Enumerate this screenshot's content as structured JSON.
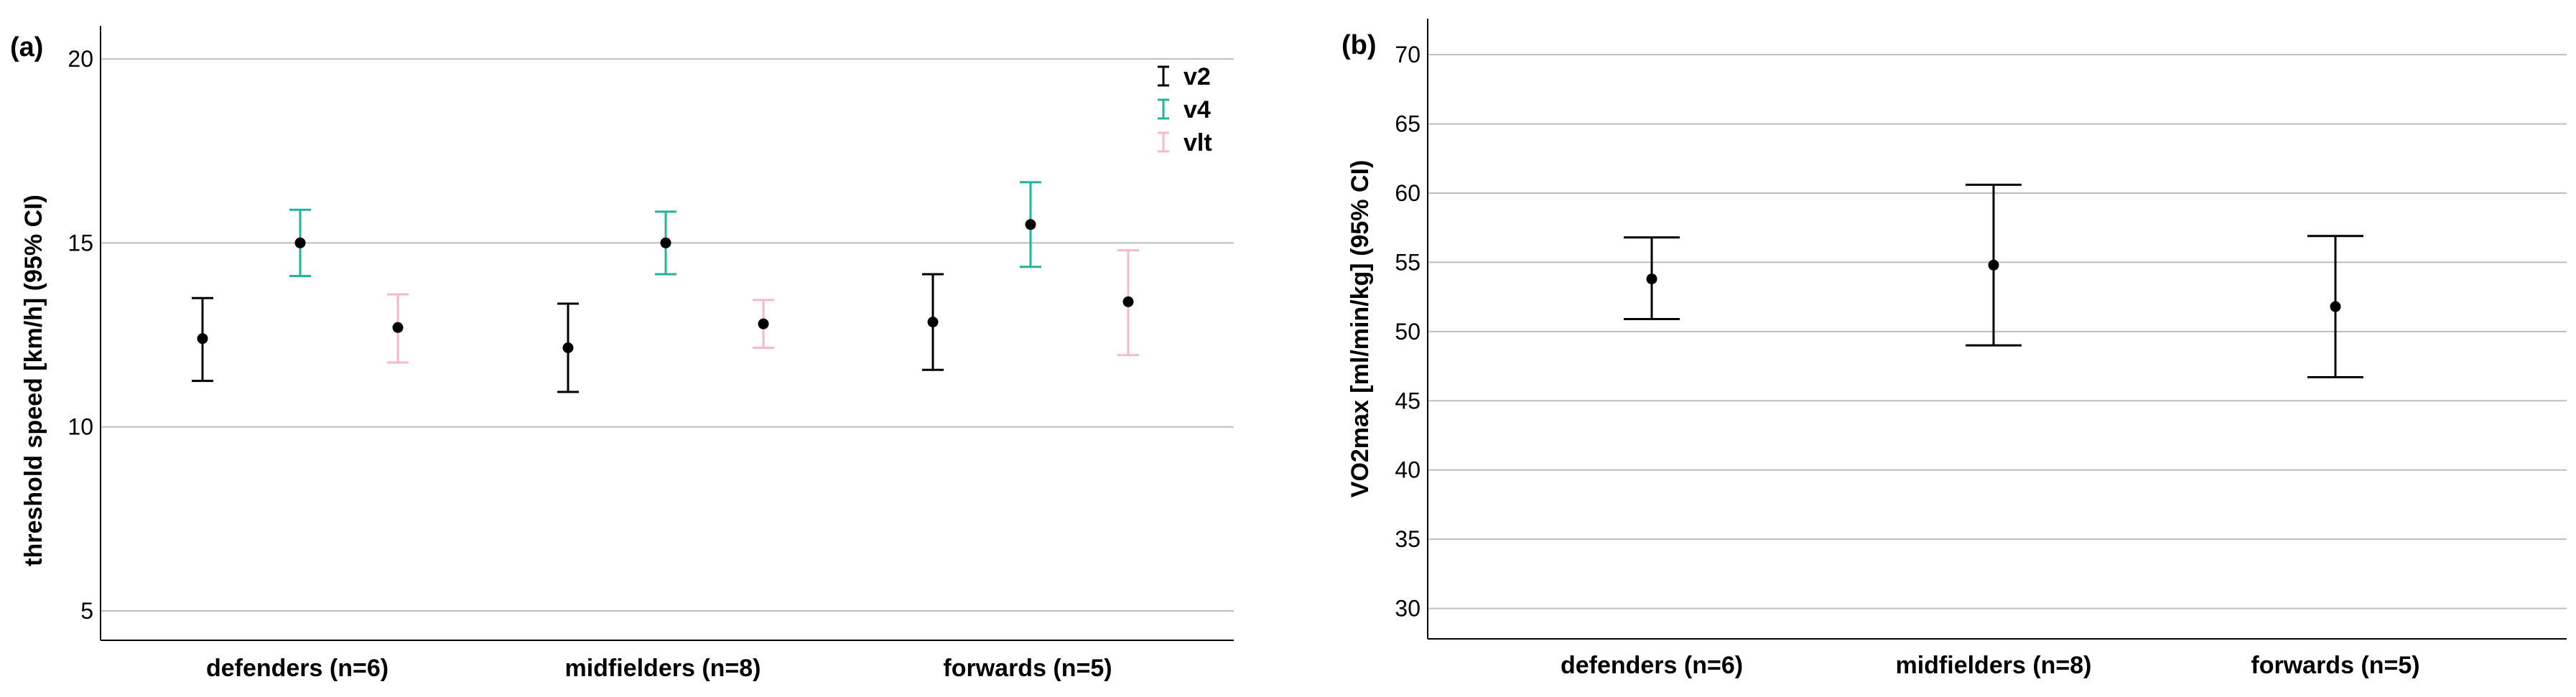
{
  "chart_data": [
    {
      "type": "errorbar",
      "panel_label": "(a)",
      "ylabel": "threshold speed [km/h] (95% CI)",
      "xlabel": "",
      "ylim": [
        4.2,
        20.9
      ],
      "yticks": [
        5,
        10,
        15,
        20
      ],
      "grid": true,
      "categories": [
        "defenders (n=6)",
        "midfielders (n=8)",
        "forwards (n=5)"
      ],
      "legend_position": "top-right",
      "series": [
        {
          "name": "v2",
          "color": "#000000",
          "mean": [
            12.4,
            12.15,
            12.85
          ],
          "lower": [
            11.25,
            10.95,
            11.55
          ],
          "upper": [
            13.5,
            13.35,
            14.15
          ]
        },
        {
          "name": "v4",
          "color": "#1fb59b",
          "mean": [
            15.0,
            15.0,
            15.5
          ],
          "lower": [
            14.1,
            14.15,
            14.35
          ],
          "upper": [
            15.9,
            15.85,
            16.65
          ]
        },
        {
          "name": "vlt",
          "color": "#f5b8cd",
          "mean": [
            12.7,
            12.8,
            13.4
          ],
          "lower": [
            11.75,
            12.15,
            11.95
          ],
          "upper": [
            13.6,
            13.45,
            14.8
          ]
        }
      ]
    },
    {
      "type": "errorbar",
      "panel_label": "(b)",
      "ylabel": "VO2max [ml/min/kg] (95% CI)",
      "xlabel": "",
      "ylim": [
        27.8,
        72.6
      ],
      "yticks": [
        30,
        35,
        40,
        45,
        50,
        55,
        60,
        65,
        70
      ],
      "grid": true,
      "categories": [
        "defenders (n=6)",
        "midfielders (n=8)",
        "forwards (n=5)"
      ],
      "series": [
        {
          "name": "VO2max",
          "color": "#000000",
          "mean": [
            53.8,
            54.8,
            51.8
          ],
          "lower": [
            50.9,
            49.0,
            46.7
          ],
          "upper": [
            56.8,
            60.6,
            56.9
          ]
        }
      ]
    }
  ]
}
